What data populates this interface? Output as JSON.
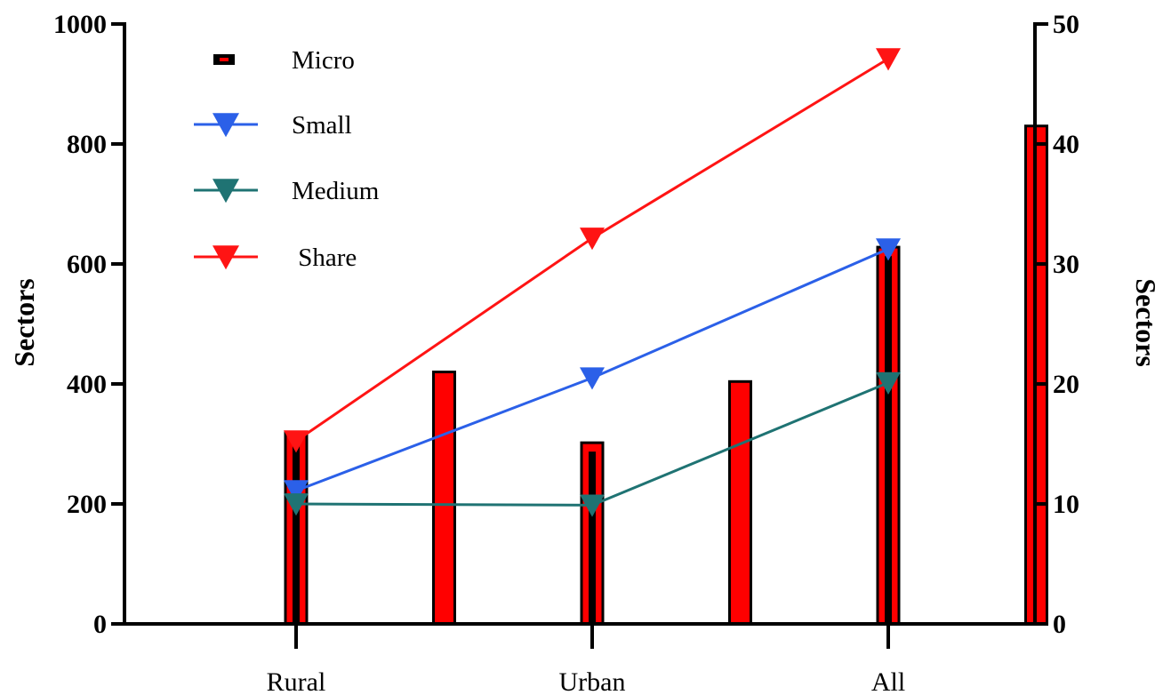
{
  "chart_data": {
    "type": "bar",
    "categories": [
      "Rural",
      "Urban",
      "All"
    ],
    "ylabel_left": "Sectors",
    "ylabel_right": "Sectors",
    "ylim_left": [
      0,
      1000
    ],
    "ylim_right": [
      0,
      50
    ],
    "yticks_left": [
      "0",
      "200",
      "400",
      "600",
      "800",
      "1000"
    ],
    "yticks_right": [
      "0",
      "10",
      "20",
      "30",
      "40",
      "50"
    ],
    "grid": false,
    "legend_position": "top-left",
    "bar_series": [
      {
        "name": "Micro",
        "axis": "left",
        "color": "#ff0000",
        "values": [
          320,
          302,
          628
        ],
        "x_positions": [
          0,
          1,
          2
        ]
      },
      {
        "axis": "right",
        "color": "#ff0000",
        "values": [
          21,
          20.2,
          41.5
        ],
        "x_positions": [
          0.5,
          1.5,
          2.5
        ]
      }
    ],
    "line_series": [
      {
        "name": "Small",
        "axis": "left",
        "color": "#2b60e8",
        "marker": "triangle-down",
        "values": [
          222,
          410,
          625
        ]
      },
      {
        "name": "Medium",
        "axis": "left",
        "color": "#1f7373",
        "marker": "triangle-down",
        "values": [
          200,
          198,
          402
        ]
      },
      {
        "name": "Share",
        "axis": "left",
        "color": "#ff1414",
        "marker": "triangle-down",
        "values": [
          305,
          643,
          942
        ]
      }
    ],
    "legend": [
      {
        "label": "Micro",
        "kind": "bar"
      },
      {
        "label": "Small",
        "kind": "line"
      },
      {
        "label": "Medium",
        "kind": "line"
      },
      {
        "label": " Share",
        "kind": "line"
      }
    ]
  }
}
